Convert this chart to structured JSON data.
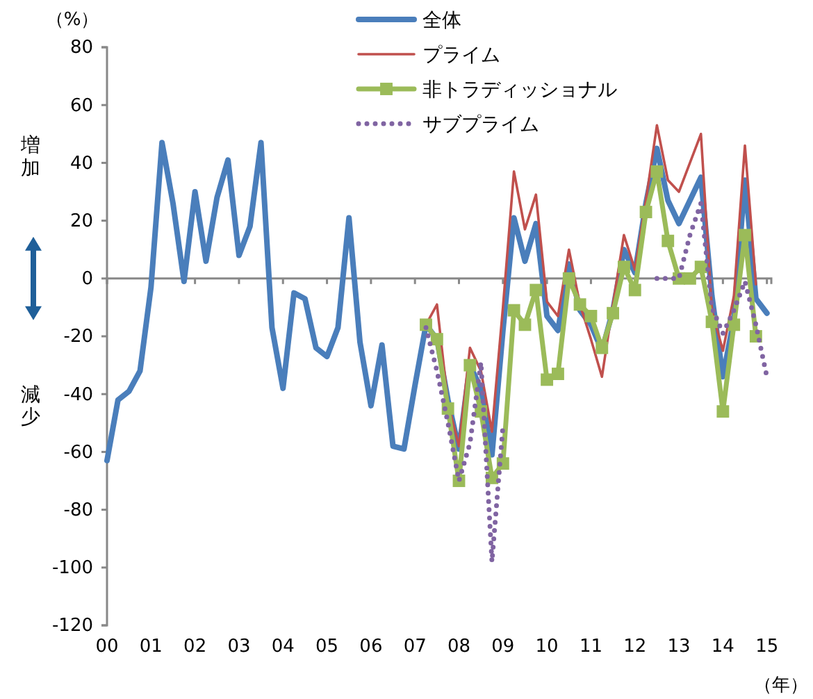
{
  "chart_data": {
    "type": "line",
    "ylabel": "（%）",
    "xlabel": "（年）",
    "annotations": [
      "増加",
      "減少"
    ],
    "xlim": [
      2000,
      2015.1
    ],
    "xticks": [
      {
        "value": 2000,
        "label": "00"
      },
      {
        "value": 2001,
        "label": "01"
      },
      {
        "value": 2002,
        "label": "02"
      },
      {
        "value": 2003,
        "label": "03"
      },
      {
        "value": 2004,
        "label": "04"
      },
      {
        "value": 2005,
        "label": "05"
      },
      {
        "value": 2006,
        "label": "06"
      },
      {
        "value": 2007,
        "label": "07"
      },
      {
        "value": 2008,
        "label": "08"
      },
      {
        "value": 2009,
        "label": "09"
      },
      {
        "value": 2010,
        "label": "10"
      },
      {
        "value": 2011,
        "label": "11"
      },
      {
        "value": 2012,
        "label": "12"
      },
      {
        "value": 2013,
        "label": "13"
      },
      {
        "value": 2014,
        "label": "14"
      },
      {
        "value": 2015,
        "label": "15"
      }
    ],
    "ylim": [
      -120,
      80
    ],
    "yticks": [
      -120,
      -100,
      -80,
      -60,
      -40,
      -20,
      0,
      20,
      40,
      60,
      80
    ],
    "legend": "top",
    "grid": false,
    "series": [
      {
        "name": "全体",
        "color": "#4a7ebb",
        "marker": "none",
        "line_style": "solid",
        "x": [
          2000,
          2000.25,
          2000.5,
          2000.75,
          2001,
          2001.25,
          2001.5,
          2001.75,
          2002,
          2002.25,
          2002.5,
          2002.75,
          2003,
          2003.25,
          2003.5,
          2003.75,
          2004,
          2004.25,
          2004.5,
          2004.75,
          2005,
          2005.25,
          2005.5,
          2005.75,
          2006,
          2006.25,
          2006.5,
          2006.75,
          2007,
          2007.25,
          2007.5,
          2007.75,
          2008,
          2008.25,
          2008.5,
          2008.75,
          2009,
          2009.25,
          2009.5,
          2009.75,
          2010,
          2010.25,
          2010.5,
          2010.75,
          2011,
          2011.25,
          2011.5,
          2011.75,
          2012,
          2012.25,
          2012.5,
          2012.75,
          2013,
          2013.25,
          2013.5,
          2013.75,
          2014,
          2014.25,
          2014.5,
          2014.75,
          2015
        ],
        "values": [
          -63,
          -42,
          -39,
          -32,
          -3,
          47,
          26,
          -1,
          30,
          6,
          28,
          41,
          8,
          18,
          47,
          -17,
          -38,
          -5,
          -7,
          -24,
          -27,
          -17,
          21,
          -22,
          -44,
          -23,
          -58,
          -59,
          -37,
          -16,
          -21,
          -42,
          -59,
          -30,
          -38,
          -61,
          -18,
          21,
          6,
          19,
          -13,
          -18,
          5,
          -11,
          -16,
          -25,
          -11,
          10,
          2,
          26,
          45,
          27,
          19,
          27,
          35,
          -6,
          -34,
          -14,
          34,
          -7,
          -12
        ]
      },
      {
        "name": "プライム",
        "color": "#c0504d",
        "marker": "none",
        "line_style": "solid",
        "x": [
          2007.25,
          2007.5,
          2007.75,
          2008,
          2008.25,
          2008.5,
          2008.75,
          2009,
          2009.25,
          2009.5,
          2009.75,
          2010,
          2010.25,
          2010.5,
          2010.75,
          2011,
          2011.25,
          2011.5,
          2011.75,
          2012,
          2012.25,
          2012.5,
          2012.75,
          2013,
          2013.25,
          2013.5,
          2013.75,
          2014,
          2014.25,
          2014.5,
          2014.75
        ],
        "values": [
          -16,
          -9,
          -43,
          -58,
          -24,
          -32,
          -53,
          -10,
          37,
          17,
          29,
          -8,
          -13,
          10,
          -9,
          -21,
          -34,
          -9,
          15,
          3,
          27,
          53,
          34,
          30,
          40,
          50,
          -11,
          -25,
          -6,
          46,
          -2
        ]
      },
      {
        "name": "非トラディッショナル",
        "color": "#9bbb59",
        "marker": "square",
        "line_style": "solid",
        "x": [
          2007.25,
          2007.5,
          2007.75,
          2008,
          2008.25,
          2008.5,
          2008.75,
          2009,
          2009.25,
          2009.5,
          2009.75,
          2010,
          2010.25,
          2010.5,
          2010.75,
          2011,
          2011.25,
          2011.5,
          2011.75,
          2012,
          2012.25,
          2012.5,
          2012.75,
          2013,
          2013.25,
          2013.5,
          2013.75,
          2014,
          2014.25,
          2014.5,
          2014.75
        ],
        "values": [
          -16,
          -21,
          -45,
          -70,
          -30,
          -46,
          -69,
          -64,
          -11,
          -16,
          -4,
          -35,
          -33,
          0,
          -9,
          -13,
          -24,
          -12,
          4,
          -4,
          23,
          37,
          13,
          0,
          0,
          4,
          -15,
          -46,
          -16,
          15,
          -20
        ]
      },
      {
        "name": "サブプライム",
        "color": "#8064a2",
        "marker": "none",
        "line_style": "dotted",
        "x": [
          2007.25,
          2007.5,
          2007.75,
          2008,
          2008.25,
          2008.5,
          2008.75,
          2009,
          2009.25,
          2009.5,
          2009.75,
          2010,
          2010.25,
          2010.5,
          2010.75,
          2011,
          2011.25,
          2011.5,
          2011.75,
          2012,
          2012.25,
          2012.5,
          2012.75,
          2013,
          2013.25,
          2013.5,
          2013.75,
          2014,
          2014.25,
          2014.5,
          2014.75,
          2015
        ],
        "values": [
          -17,
          -32,
          -50,
          -70,
          -57,
          -29,
          -98,
          -51,
          null,
          null,
          null,
          null,
          null,
          null,
          null,
          null,
          null,
          null,
          null,
          null,
          null,
          0,
          0,
          0,
          15,
          26,
          -10,
          -19,
          -11,
          -1,
          -16,
          -34
        ]
      }
    ]
  }
}
